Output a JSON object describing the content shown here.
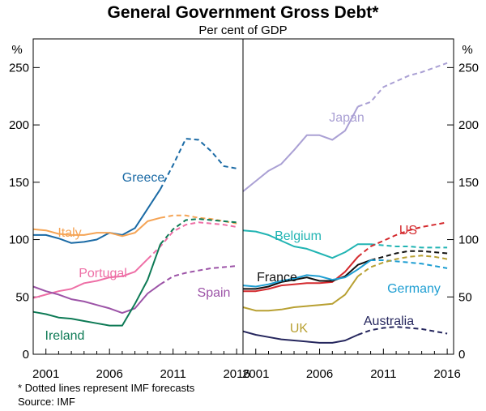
{
  "chart_data": {
    "type": "line",
    "title": "General Government Gross Debt*",
    "subtitle": "Per cent of GDP",
    "ylabel_left": "%",
    "ylabel_right": "%",
    "ylim": [
      0,
      275
    ],
    "yticks": [
      0,
      50,
      100,
      150,
      200,
      250
    ],
    "xlim": [
      2000,
      2016.5
    ],
    "xticks": [
      2001,
      2006,
      2011,
      2016
    ],
    "footnote": "*  Dotted lines represent IMF forecasts",
    "source": "Source: IMF",
    "panels": [
      {
        "name": "left",
        "series": [
          {
            "name": "Greece",
            "color": "#1a6aa5",
            "actual": [
              [
                2000,
                104
              ],
              [
                2001,
                104
              ],
              [
                2002,
                101
              ],
              [
                2003,
                97
              ],
              [
                2004,
                98
              ],
              [
                2005,
                100
              ],
              [
                2006,
                106
              ],
              [
                2007,
                104
              ],
              [
                2008,
                110
              ],
              [
                2009,
                127
              ],
              [
                2010,
                144
              ]
            ],
            "forecast": [
              [
                2010,
                144
              ],
              [
                2011,
                165
              ],
              [
                2012,
                188
              ],
              [
                2013,
                187
              ],
              [
                2014,
                177
              ],
              [
                2015,
                164
              ],
              [
                2016,
                162
              ]
            ]
          },
          {
            "name": "Italy",
            "color": "#f5a455",
            "actual": [
              [
                2000,
                109
              ],
              [
                2001,
                108
              ],
              [
                2002,
                105
              ],
              [
                2003,
                104
              ],
              [
                2004,
                104
              ],
              [
                2005,
                106
              ],
              [
                2006,
                106
              ],
              [
                2007,
                103
              ],
              [
                2008,
                106
              ],
              [
                2009,
                116
              ],
              [
                2010,
                119
              ]
            ],
            "forecast": [
              [
                2010,
                119
              ],
              [
                2011,
                121
              ],
              [
                2012,
                121
              ],
              [
                2013,
                119
              ],
              [
                2014,
                118
              ],
              [
                2015,
                116
              ],
              [
                2016,
                114
              ]
            ]
          },
          {
            "name": "Portugal",
            "color": "#ee6fa6",
            "actual": [
              [
                2000,
                49
              ],
              [
                2001,
                52
              ],
              [
                2002,
                55
              ],
              [
                2003,
                57
              ],
              [
                2004,
                62
              ],
              [
                2005,
                64
              ],
              [
                2006,
                67
              ],
              [
                2007,
                68
              ],
              [
                2008,
                72
              ],
              [
                2009,
                83
              ]
            ],
            "forecast": [
              [
                2009,
                83
              ],
              [
                2010,
                94
              ],
              [
                2011,
                107
              ],
              [
                2012,
                113
              ],
              [
                2013,
                115
              ],
              [
                2014,
                114
              ],
              [
                2015,
                113
              ],
              [
                2016,
                111
              ]
            ]
          },
          {
            "name": "Spain",
            "color": "#9c53a7",
            "actual": [
              [
                2000,
                59
              ],
              [
                2001,
                55
              ],
              [
                2002,
                52
              ],
              [
                2003,
                48
              ],
              [
                2004,
                46
              ],
              [
                2005,
                43
              ],
              [
                2006,
                40
              ],
              [
                2007,
                36
              ],
              [
                2008,
                40
              ],
              [
                2009,
                53
              ],
              [
                2010,
                61
              ]
            ],
            "forecast": [
              [
                2010,
                61
              ],
              [
                2011,
                68
              ],
              [
                2012,
                71
              ],
              [
                2013,
                73
              ],
              [
                2014,
                75
              ],
              [
                2015,
                76
              ],
              [
                2016,
                77
              ]
            ]
          },
          {
            "name": "Ireland",
            "color": "#0d7a55",
            "actual": [
              [
                2000,
                37
              ],
              [
                2001,
                35
              ],
              [
                2002,
                32
              ],
              [
                2003,
                31
              ],
              [
                2004,
                29
              ],
              [
                2005,
                27
              ],
              [
                2006,
                25
              ],
              [
                2007,
                25
              ],
              [
                2008,
                44
              ],
              [
                2009,
                65
              ],
              [
                2010,
                96
              ]
            ],
            "forecast": [
              [
                2010,
                96
              ],
              [
                2011,
                109
              ],
              [
                2012,
                117
              ],
              [
                2013,
                118
              ],
              [
                2014,
                117
              ],
              [
                2015,
                116
              ],
              [
                2016,
                115
              ]
            ]
          }
        ]
      },
      {
        "name": "right",
        "series": [
          {
            "name": "Japan",
            "color": "#aaa0d4",
            "actual": [
              [
                2000,
                142
              ],
              [
                2001,
                151
              ],
              [
                2002,
                160
              ],
              [
                2003,
                166
              ],
              [
                2004,
                178
              ],
              [
                2005,
                191
              ],
              [
                2006,
                191
              ],
              [
                2007,
                187
              ],
              [
                2008,
                195
              ],
              [
                2009,
                216
              ]
            ],
            "forecast": [
              [
                2009,
                216
              ],
              [
                2010,
                220
              ],
              [
                2011,
                233
              ],
              [
                2012,
                238
              ],
              [
                2013,
                243
              ],
              [
                2014,
                246
              ],
              [
                2015,
                250
              ],
              [
                2016,
                254
              ]
            ]
          },
          {
            "name": "Belgium",
            "color": "#21b4b3",
            "actual": [
              [
                2000,
                108
              ],
              [
                2001,
                107
              ],
              [
                2002,
                104
              ],
              [
                2003,
                99
              ],
              [
                2004,
                94
              ],
              [
                2005,
                92
              ],
              [
                2006,
                88
              ],
              [
                2007,
                84
              ],
              [
                2008,
                89
              ],
              [
                2009,
                96
              ],
              [
                2010,
                96
              ]
            ],
            "forecast": [
              [
                2010,
                96
              ],
              [
                2011,
                95
              ],
              [
                2012,
                94
              ],
              [
                2013,
                94
              ],
              [
                2014,
                93
              ],
              [
                2015,
                93
              ],
              [
                2016,
                93
              ]
            ]
          },
          {
            "name": "US",
            "color": "#d42a2e",
            "actual": [
              [
                2000,
                55
              ],
              [
                2001,
                55
              ],
              [
                2002,
                57
              ],
              [
                2003,
                60
              ],
              [
                2004,
                61
              ],
              [
                2005,
                62
              ],
              [
                2006,
                62
              ],
              [
                2007,
                63
              ],
              [
                2008,
                72
              ],
              [
                2009,
                85
              ]
            ],
            "forecast": [
              [
                2009,
                85
              ],
              [
                2010,
                94
              ],
              [
                2011,
                99
              ],
              [
                2012,
                104
              ],
              [
                2013,
                108
              ],
              [
                2014,
                111
              ],
              [
                2015,
                113
              ],
              [
                2016,
                115
              ]
            ]
          },
          {
            "name": "France",
            "color": "#111111",
            "actual": [
              [
                2000,
                57
              ],
              [
                2001,
                57
              ],
              [
                2002,
                59
              ],
              [
                2003,
                63
              ],
              [
                2004,
                65
              ],
              [
                2005,
                67
              ],
              [
                2006,
                64
              ],
              [
                2007,
                64
              ],
              [
                2008,
                68
              ],
              [
                2009,
                78
              ],
              [
                2010,
                82
              ]
            ],
            "forecast": [
              [
                2010,
                82
              ],
              [
                2011,
                85
              ],
              [
                2012,
                88
              ],
              [
                2013,
                90
              ],
              [
                2014,
                90
              ],
              [
                2015,
                89
              ],
              [
                2016,
                88
              ]
            ]
          },
          {
            "name": "Germany",
            "color": "#1e9ed2",
            "actual": [
              [
                2000,
                60
              ],
              [
                2001,
                59
              ],
              [
                2002,
                61
              ],
              [
                2003,
                64
              ],
              [
                2004,
                66
              ],
              [
                2005,
                69
              ],
              [
                2006,
                68
              ],
              [
                2007,
                65
              ],
              [
                2008,
                67
              ],
              [
                2009,
                74
              ],
              [
                2010,
                82
              ]
            ],
            "forecast": [
              [
                2010,
                82
              ],
              [
                2011,
                82
              ],
              [
                2012,
                81
              ],
              [
                2013,
                80
              ],
              [
                2014,
                79
              ],
              [
                2015,
                77
              ],
              [
                2016,
                75
              ]
            ]
          },
          {
            "name": "UK",
            "color": "#b8a032",
            "actual": [
              [
                2000,
                41
              ],
              [
                2001,
                38
              ],
              [
                2002,
                38
              ],
              [
                2003,
                39
              ],
              [
                2004,
                41
              ],
              [
                2005,
                42
              ],
              [
                2006,
                43
              ],
              [
                2007,
                44
              ],
              [
                2008,
                52
              ],
              [
                2009,
                68
              ]
            ],
            "forecast": [
              [
                2009,
                68
              ],
              [
                2010,
                76
              ],
              [
                2011,
                80
              ],
              [
                2012,
                83
              ],
              [
                2013,
                85
              ],
              [
                2014,
                86
              ],
              [
                2015,
                85
              ],
              [
                2016,
                83
              ]
            ]
          },
          {
            "name": "Australia",
            "color": "#26275e",
            "actual": [
              [
                2000,
                20
              ],
              [
                2001,
                17
              ],
              [
                2002,
                15
              ],
              [
                2003,
                13
              ],
              [
                2004,
                12
              ],
              [
                2005,
                11
              ],
              [
                2006,
                10
              ],
              [
                2007,
                10
              ],
              [
                2008,
                12
              ],
              [
                2009,
                17
              ]
            ],
            "forecast": [
              [
                2009,
                17
              ],
              [
                2010,
                21
              ],
              [
                2011,
                23
              ],
              [
                2012,
                24
              ],
              [
                2013,
                23
              ],
              [
                2014,
                22
              ],
              [
                2015,
                20
              ],
              [
                2016,
                18
              ]
            ]
          }
        ]
      }
    ]
  }
}
